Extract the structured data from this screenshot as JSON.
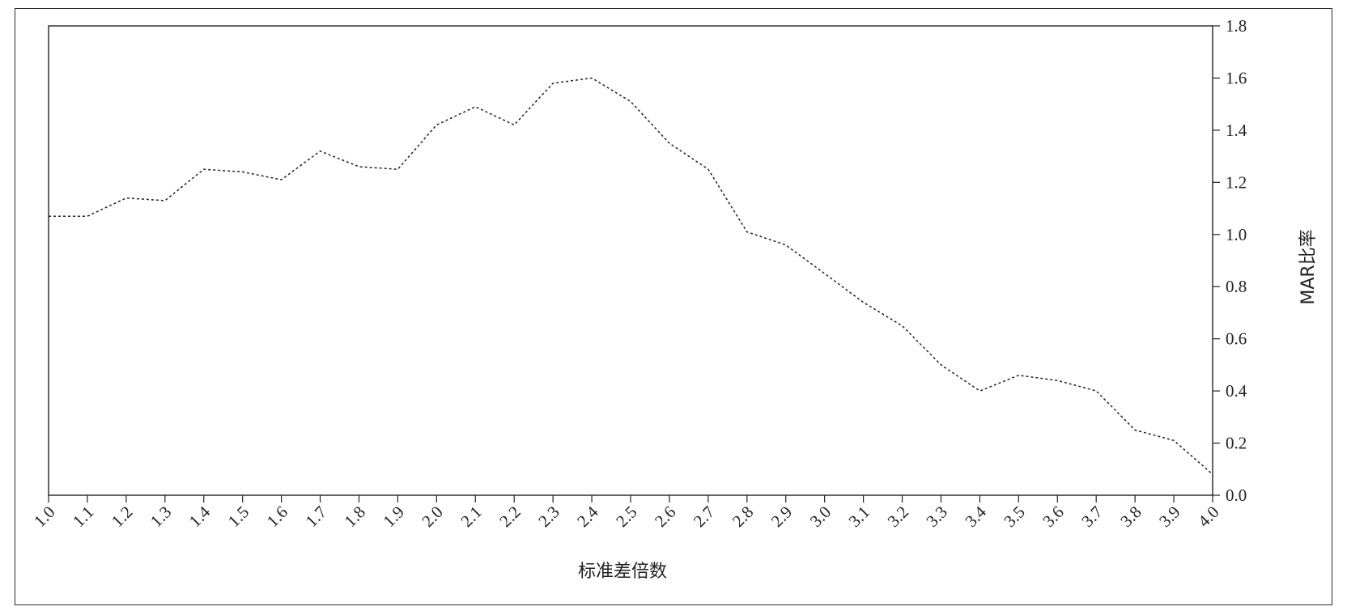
{
  "chart_data": {
    "type": "line",
    "title": "",
    "xlabel": "标准差倍数",
    "ylabel": "MAR比率",
    "xlim": [
      1.0,
      4.0
    ],
    "ylim": [
      0.0,
      1.8
    ],
    "x_ticks": [
      "1.0",
      "1.1",
      "1.2",
      "1.3",
      "1.4",
      "1.5",
      "1.6",
      "1.7",
      "1.8",
      "1.9",
      "2.0",
      "2.1",
      "2.2",
      "2.3",
      "2.4",
      "2.5",
      "2.6",
      "2.7",
      "2.8",
      "2.9",
      "3.0",
      "3.1",
      "3.2",
      "3.3",
      "3.4",
      "3.5",
      "3.6",
      "3.7",
      "3.8",
      "3.9",
      "4.0"
    ],
    "y_ticks": [
      "0.0",
      "0.2",
      "0.4",
      "0.6",
      "0.8",
      "1.0",
      "1.2",
      "1.4",
      "1.6",
      "1.8"
    ],
    "y_axis_side": "right",
    "grid": false,
    "line_style": "dotted",
    "line_color": "#222222",
    "series": [
      {
        "x": [
          1.0,
          1.1,
          1.2,
          1.3,
          1.4,
          1.5,
          1.6,
          1.7,
          1.8,
          1.9,
          2.0,
          2.1,
          2.2,
          2.3,
          2.4,
          2.5,
          2.6,
          2.7,
          2.8,
          2.9,
          3.0,
          3.1,
          3.2,
          3.3,
          3.4,
          3.5,
          3.6,
          3.7,
          3.8,
          3.9,
          4.0
        ],
        "values": [
          1.07,
          1.07,
          1.14,
          1.13,
          1.25,
          1.24,
          1.21,
          1.32,
          1.26,
          1.25,
          1.42,
          1.49,
          1.42,
          1.58,
          1.6,
          1.51,
          1.35,
          1.25,
          1.01,
          0.96,
          0.85,
          0.74,
          0.65,
          0.5,
          0.4,
          0.46,
          0.44,
          0.4,
          0.25,
          0.21,
          0.08
        ]
      }
    ]
  }
}
